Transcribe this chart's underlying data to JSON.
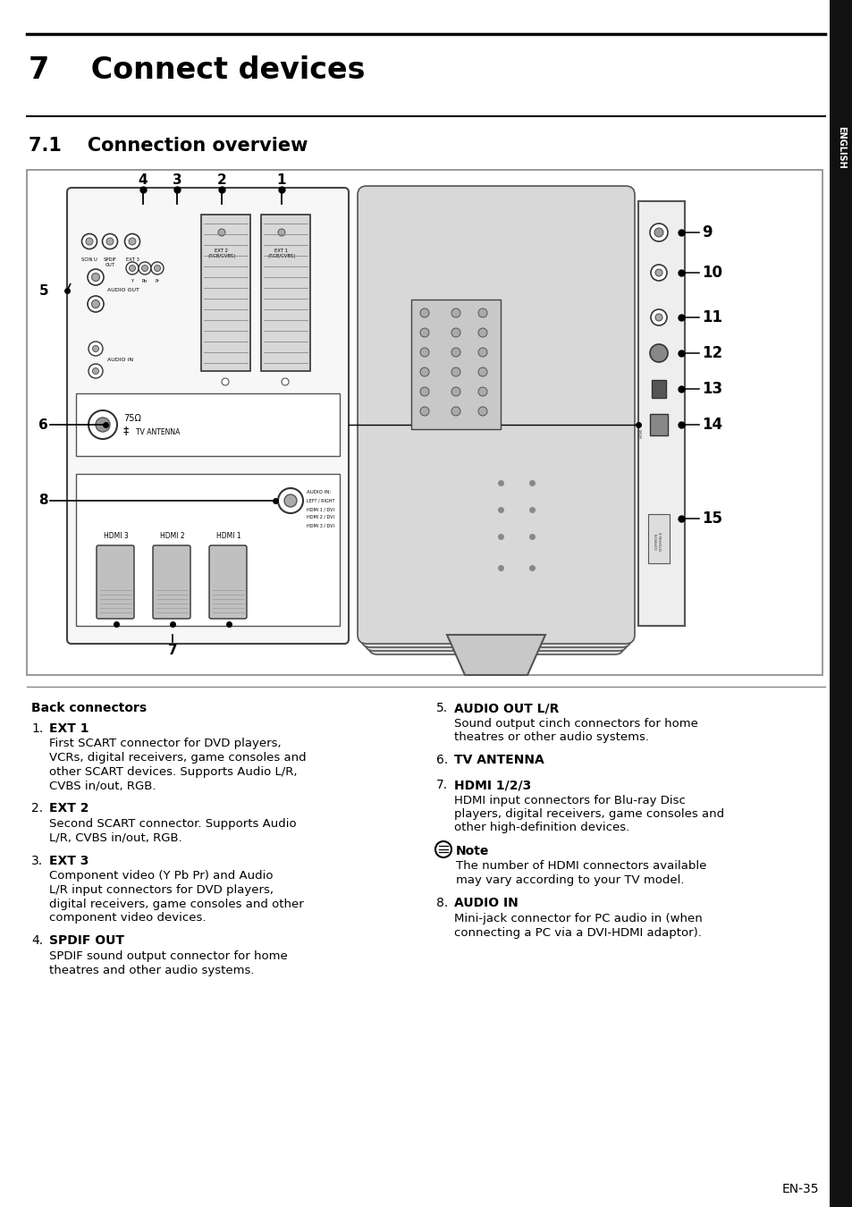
{
  "page_bg": "#ffffff",
  "sidebar_bg": "#111111",
  "sidebar_text": "ENGLISH",
  "title": "7    Connect devices",
  "subtitle": "7.1    Connection overview",
  "back_connectors_title": "Back connectors",
  "items_left": [
    {
      "num": "1.",
      "label": "EXT 1",
      "desc": "First SCART connector for DVD players,\nVCRs, digital receivers, game consoles and\nother SCART devices. Supports Audio L/R,\nCVBS in/out, RGB."
    },
    {
      "num": "2.",
      "label": "EXT 2",
      "desc": "Second SCART connector. Supports Audio\nL/R, CVBS in/out, RGB."
    },
    {
      "num": "3.",
      "label": "EXT 3",
      "desc": "Component video (Y Pb Pr) and Audio\nL/R input connectors for DVD players,\ndigital receivers, game consoles and other\ncomponent video devices."
    },
    {
      "num": "4.",
      "label": "SPDIF OUT",
      "desc": "SPDIF sound output connector for home\ntheatres and other audio systems."
    }
  ],
  "items_right": [
    {
      "num": "5.",
      "label": "AUDIO OUT L/R",
      "desc": "Sound output cinch connectors for home\ntheatres or other audio systems."
    },
    {
      "num": "6.",
      "label": "TV ANTENNA",
      "desc": ""
    },
    {
      "num": "7.",
      "label": "HDMI 1/2/3",
      "desc": "HDMI input connectors for Blu-ray Disc\nplayers, digital receivers, game consoles and\nother high-definition devices."
    },
    {
      "num": "",
      "label": "Note",
      "desc": "The number of HDMI connectors available\nmay vary according to your TV model.",
      "is_note": true
    },
    {
      "num": "8.",
      "label": "AUDIO IN",
      "desc": "Mini-jack connector for PC audio in (when\nconnecting a PC via a DVI-HDMI adaptor)."
    }
  ],
  "page_number": "EN-35"
}
